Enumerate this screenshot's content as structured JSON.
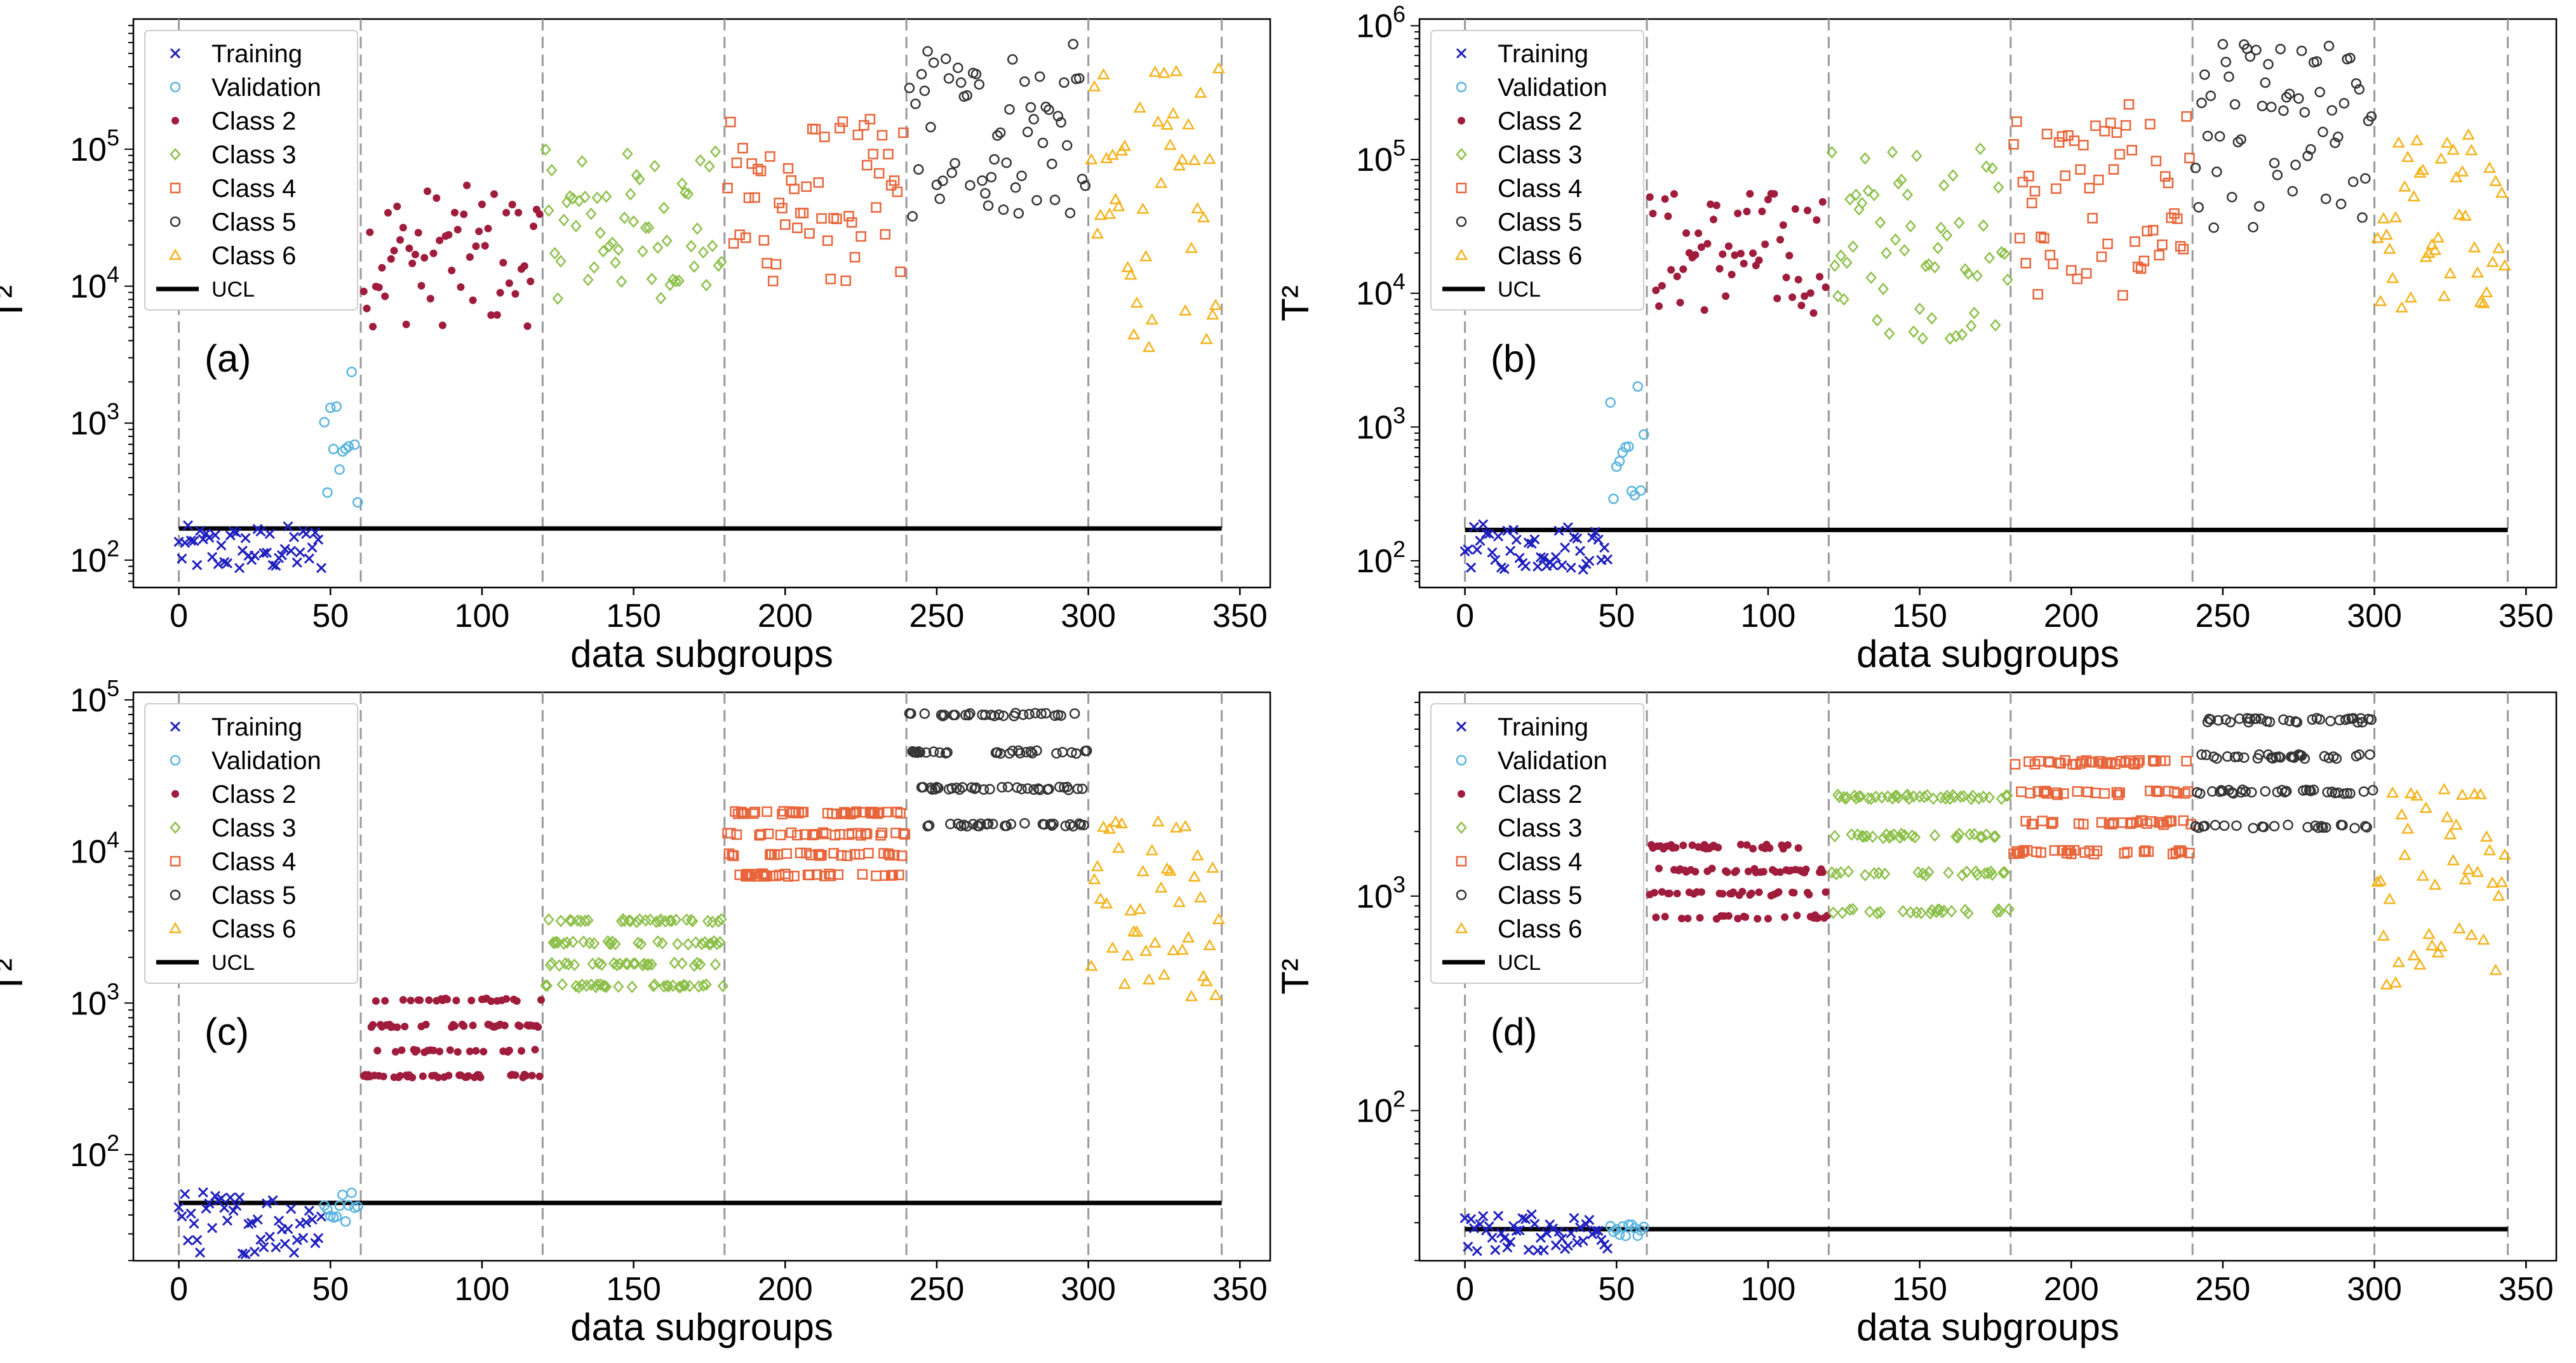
{
  "figure": {
    "xlabel": "data subgroups",
    "ylabel": "T²",
    "legend_position": "upper-left",
    "ucl_label": "UCL"
  },
  "legend_series": [
    {
      "name": "Training",
      "marker": "x",
      "color": "#1f1fbf"
    },
    {
      "name": "Validation",
      "marker": "circle-open",
      "color": "#5ab4e0"
    },
    {
      "name": "Class 2",
      "marker": "dot",
      "color": "#a01c3c"
    },
    {
      "name": "Class 3",
      "marker": "diamond-open",
      "color": "#8dc04a"
    },
    {
      "name": "Class 4",
      "marker": "square-open",
      "color": "#e8653a"
    },
    {
      "name": "Class 5",
      "marker": "circle-open",
      "color": "#333333"
    },
    {
      "name": "Class 6",
      "marker": "triangle-open",
      "color": "#f5b31c"
    }
  ],
  "chart_data": [
    {
      "type": "scatter",
      "annotation": "(a)",
      "yscale": "log",
      "xlim": [
        -15,
        360
      ],
      "ylim_log10": [
        1.8,
        5.95
      ],
      "xticks": [
        0,
        50,
        100,
        150,
        200,
        250,
        300,
        350
      ],
      "yticks_exp": [
        2,
        3,
        4,
        5
      ],
      "class_boundaries": [
        0,
        60,
        120,
        180,
        240,
        300,
        344
      ],
      "ucl": 170,
      "series": [
        {
          "name": "Training",
          "x_range": [
            0,
            47
          ],
          "y_range": [
            80,
            180
          ]
        },
        {
          "name": "Validation",
          "x_range": [
            48,
            59
          ],
          "y_range": [
            250,
            2700
          ]
        },
        {
          "name": "Class 2",
          "x_range": [
            61,
            119
          ],
          "y_range": [
            5000,
            55000
          ]
        },
        {
          "name": "Class 3",
          "x_range": [
            121,
            179
          ],
          "y_range": [
            8000,
            100000
          ]
        },
        {
          "name": "Class 4",
          "x_range": [
            181,
            239
          ],
          "y_range": [
            10000,
            170000
          ]
        },
        {
          "name": "Class 5",
          "x_range": [
            241,
            299
          ],
          "y_range": [
            30000,
            600000
          ]
        },
        {
          "name": "Class 6",
          "x_range": [
            301,
            343
          ],
          "y_range": [
            3500,
            400000
          ]
        }
      ]
    },
    {
      "type": "scatter",
      "annotation": "(b)",
      "yscale": "log",
      "xlim": [
        -15,
        360
      ],
      "ylim_log10": [
        1.8,
        6.05
      ],
      "xticks": [
        0,
        50,
        100,
        150,
        200,
        250,
        300,
        350
      ],
      "yticks_exp": [
        2,
        3,
        4,
        5,
        6
      ],
      "class_boundaries": [
        0,
        60,
        120,
        180,
        240,
        300,
        344
      ],
      "ucl": 170,
      "series": [
        {
          "name": "Training",
          "x_range": [
            0,
            47
          ],
          "y_range": [
            85,
            190
          ]
        },
        {
          "name": "Validation",
          "x_range": [
            48,
            59
          ],
          "y_range": [
            280,
            2500
          ]
        },
        {
          "name": "Class 2",
          "x_range": [
            61,
            119
          ],
          "y_range": [
            7000,
            60000
          ]
        },
        {
          "name": "Class 3",
          "x_range": [
            121,
            179
          ],
          "y_range": [
            4500,
            130000
          ]
        },
        {
          "name": "Class 4",
          "x_range": [
            181,
            239
          ],
          "y_range": [
            9000,
            260000
          ]
        },
        {
          "name": "Class 5",
          "x_range": [
            241,
            299
          ],
          "y_range": [
            30000,
            750000
          ]
        },
        {
          "name": "Class 6",
          "x_range": [
            301,
            343
          ],
          "y_range": [
            6500,
            170000
          ]
        }
      ]
    },
    {
      "type": "scatter",
      "annotation": "(c)",
      "yscale": "log",
      "xlim": [
        -15,
        360
      ],
      "ylim_log10": [
        1.3,
        5.05
      ],
      "xticks": [
        0,
        50,
        100,
        150,
        200,
        250,
        300,
        350
      ],
      "yticks_exp": [
        2,
        3,
        4,
        5
      ],
      "class_boundaries": [
        0,
        60,
        120,
        180,
        240,
        300,
        344
      ],
      "ucl": 48,
      "series": [
        {
          "name": "Training",
          "x_range": [
            0,
            47
          ],
          "y_range": [
            22,
            58
          ]
        },
        {
          "name": "Validation",
          "x_range": [
            48,
            59
          ],
          "y_range": [
            33,
            58
          ]
        },
        {
          "name": "Class 2",
          "x_range": [
            61,
            119
          ],
          "y_range": [
            330,
            1050
          ]
        },
        {
          "name": "Class 3",
          "x_range": [
            121,
            179
          ],
          "y_range": [
            1300,
            3500
          ]
        },
        {
          "name": "Class 4",
          "x_range": [
            181,
            239
          ],
          "y_range": [
            7000,
            18000
          ]
        },
        {
          "name": "Class 5",
          "x_range": [
            241,
            299
          ],
          "y_range": [
            15000,
            80000
          ]
        },
        {
          "name": "Class 6",
          "x_range": [
            301,
            343
          ],
          "y_range": [
            1000,
            17000
          ]
        }
      ]
    },
    {
      "type": "scatter",
      "annotation": "(d)",
      "yscale": "log",
      "xlim": [
        -15,
        360
      ],
      "ylim_log10": [
        1.3,
        3.95
      ],
      "xticks": [
        0,
        50,
        100,
        150,
        200,
        250,
        300,
        350
      ],
      "yticks_exp": [
        2,
        3
      ],
      "class_boundaries": [
        0,
        60,
        120,
        180,
        240,
        300,
        344
      ],
      "ucl": 28,
      "series": [
        {
          "name": "Training",
          "x_range": [
            0,
            47
          ],
          "y_range": [
            22,
            33
          ]
        },
        {
          "name": "Validation",
          "x_range": [
            48,
            59
          ],
          "y_range": [
            26,
            32
          ]
        },
        {
          "name": "Class 2",
          "x_range": [
            61,
            119
          ],
          "y_range": [
            800,
            1700
          ]
        },
        {
          "name": "Class 3",
          "x_range": [
            121,
            179
          ],
          "y_range": [
            850,
            2900
          ]
        },
        {
          "name": "Class 4",
          "x_range": [
            181,
            239
          ],
          "y_range": [
            1600,
            4200
          ]
        },
        {
          "name": "Class 5",
          "x_range": [
            241,
            299
          ],
          "y_range": [
            2100,
            6600
          ]
        },
        {
          "name": "Class 6",
          "x_range": [
            301,
            343
          ],
          "y_range": [
            380,
            3200
          ]
        }
      ]
    }
  ]
}
